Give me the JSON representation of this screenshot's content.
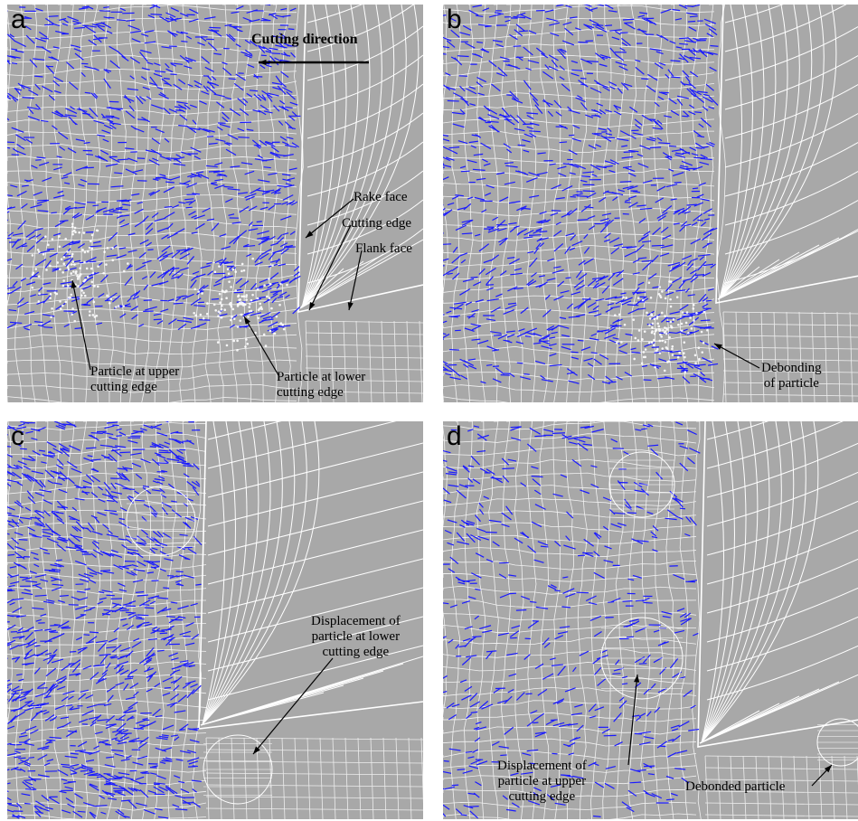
{
  "panels": [
    {
      "id": "a",
      "label": "a"
    },
    {
      "id": "b",
      "label": "b"
    },
    {
      "id": "c",
      "label": "c"
    },
    {
      "id": "d",
      "label": "d"
    }
  ],
  "annotations": {
    "cutting_direction": "Cutting direction",
    "rake_face": "Rake face",
    "cutting_edge": "Cutting edge",
    "flank_face": "Flank face",
    "particle_upper": [
      "Particle at upper",
      "cutting edge"
    ],
    "particle_lower": [
      "Particle at lower",
      "cutting edge"
    ],
    "debonding": [
      "Debonding",
      "of particle"
    ],
    "displacement_lower": [
      "Displacement of",
      "particle at lower",
      "cutting edge"
    ],
    "displacement_upper": [
      "Displacement of",
      "particle at upper",
      "cutting edge"
    ],
    "debonded_particle": "Debonded particle"
  },
  "colors": {
    "background": "#a8a8a8",
    "mesh": "#ffffff",
    "vectors": "#1a1aff",
    "highlight": "#c8e060",
    "annotation": "#000000"
  }
}
